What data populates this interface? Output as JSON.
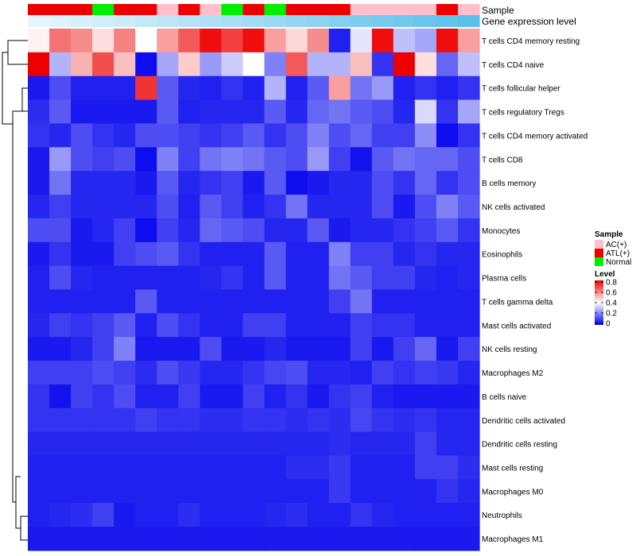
{
  "chart_data": {
    "type": "heatmap",
    "title": "",
    "annotation_titles": {
      "sample": "Sample",
      "level": "Gene expression level"
    },
    "rows": [
      "T cells CD4 memory resting",
      "T cells CD4 naive",
      "T cells follicular helper",
      "T cells regulatory  Tregs",
      "T cells CD4 memory activated",
      "T cells CD8",
      "B cells memory",
      "NK cells activated",
      "Monocytes",
      "Eosinophils",
      "Plasma cells",
      "T cells gamma delta",
      "Mast cells activated",
      "NK cells resting",
      "Macrophages M2",
      "B cells naive",
      "Dendritic cells activated",
      "Dendritic cells resting",
      "Mast cells resting",
      "Macrophages M0",
      "Neutrophils",
      "Macrophages M1"
    ],
    "sample_groups": [
      "ATL(+)",
      "ATL(+)",
      "ATL(+)",
      "Normal",
      "ATL(+)",
      "ATL(+)",
      "AC(+)",
      "ATL(+)",
      "AC(+)",
      "Normal",
      "ATL(+)",
      "Normal",
      "ATL(+)",
      "ATL(+)",
      "ATL(+)",
      "AC(+)",
      "AC(+)",
      "AC(+)",
      "AC(+)",
      "ATL(+)",
      "AC(+)"
    ],
    "gene_expression_level": [
      0.72,
      0.74,
      0.76,
      0.78,
      0.8,
      0.82,
      0.84,
      0.86,
      0.88,
      0.9,
      0.92,
      0.94,
      0.96,
      0.98,
      1.0,
      1.02,
      1.04,
      1.06,
      1.08,
      1.1,
      1.12
    ],
    "values": [
      [
        0.42,
        0.62,
        0.58,
        0.45,
        0.6,
        0.4,
        0.55,
        0.66,
        0.78,
        0.7,
        0.78,
        0.55,
        0.46,
        0.58,
        0.05,
        0.36,
        0.78,
        0.3,
        0.26,
        0.78,
        0.55
      ],
      [
        0.8,
        0.28,
        0.52,
        0.68,
        0.5,
        0.02,
        0.26,
        0.48,
        0.24,
        0.32,
        0.4,
        0.2,
        0.66,
        0.28,
        0.28,
        0.5,
        0.08,
        0.8,
        0.45,
        0.16,
        0.3
      ],
      [
        0.04,
        0.12,
        0.05,
        0.05,
        0.05,
        0.72,
        0.14,
        0.06,
        0.05,
        0.08,
        0.05,
        0.28,
        0.05,
        0.14,
        0.55,
        0.18,
        0.24,
        0.05,
        0.08,
        0.05,
        0.08
      ],
      [
        0.07,
        0.14,
        0.04,
        0.04,
        0.04,
        0.04,
        0.14,
        0.05,
        0.06,
        0.06,
        0.06,
        0.14,
        0.06,
        0.16,
        0.18,
        0.14,
        0.12,
        0.06,
        0.34,
        0.08,
        0.26
      ],
      [
        0.08,
        0.06,
        0.12,
        0.08,
        0.06,
        0.12,
        0.12,
        0.1,
        0.08,
        0.1,
        0.14,
        0.08,
        0.12,
        0.2,
        0.12,
        0.16,
        0.1,
        0.1,
        0.22,
        0.02,
        0.08
      ],
      [
        0.04,
        0.24,
        0.12,
        0.1,
        0.12,
        0.02,
        0.2,
        0.1,
        0.18,
        0.2,
        0.18,
        0.14,
        0.12,
        0.24,
        0.1,
        0.03,
        0.14,
        0.18,
        0.16,
        0.16,
        0.12
      ],
      [
        0.04,
        0.18,
        0.06,
        0.06,
        0.06,
        0.04,
        0.14,
        0.06,
        0.08,
        0.1,
        0.04,
        0.14,
        0.02,
        0.04,
        0.06,
        0.06,
        0.12,
        0.08,
        0.16,
        0.08,
        0.12
      ],
      [
        0.06,
        0.1,
        0.06,
        0.06,
        0.06,
        0.06,
        0.12,
        0.05,
        0.14,
        0.1,
        0.05,
        0.08,
        0.18,
        0.06,
        0.06,
        0.06,
        0.12,
        0.04,
        0.12,
        0.2,
        0.14
      ],
      [
        0.12,
        0.12,
        0.04,
        0.06,
        0.1,
        0.02,
        0.1,
        0.06,
        0.16,
        0.14,
        0.12,
        0.06,
        0.06,
        0.14,
        0.04,
        0.06,
        0.06,
        0.08,
        0.1,
        0.14,
        0.08
      ],
      [
        0.04,
        0.08,
        0.04,
        0.04,
        0.1,
        0.12,
        0.14,
        0.08,
        0.05,
        0.05,
        0.05,
        0.14,
        0.05,
        0.05,
        0.2,
        0.1,
        0.1,
        0.06,
        0.08,
        0.06,
        0.06
      ],
      [
        0.05,
        0.12,
        0.06,
        0.05,
        0.05,
        0.05,
        0.05,
        0.05,
        0.06,
        0.08,
        0.05,
        0.14,
        0.05,
        0.05,
        0.18,
        0.14,
        0.1,
        0.1,
        0.06,
        0.05,
        0.06
      ],
      [
        0.05,
        0.05,
        0.05,
        0.05,
        0.05,
        0.14,
        0.05,
        0.05,
        0.05,
        0.05,
        0.05,
        0.05,
        0.05,
        0.05,
        0.1,
        0.18,
        0.05,
        0.05,
        0.05,
        0.05,
        0.05
      ],
      [
        0.06,
        0.1,
        0.08,
        0.1,
        0.14,
        0.05,
        0.12,
        0.08,
        0.05,
        0.05,
        0.1,
        0.1,
        0.05,
        0.05,
        0.05,
        0.1,
        0.08,
        0.08,
        0.05,
        0.05,
        0.05
      ],
      [
        0.04,
        0.04,
        0.06,
        0.1,
        0.2,
        0.04,
        0.04,
        0.04,
        0.12,
        0.04,
        0.04,
        0.06,
        0.04,
        0.04,
        0.04,
        0.1,
        0.04,
        0.1,
        0.16,
        0.04,
        0.1
      ],
      [
        0.1,
        0.1,
        0.1,
        0.12,
        0.1,
        0.07,
        0.12,
        0.09,
        0.06,
        0.06,
        0.08,
        0.11,
        0.12,
        0.06,
        0.06,
        0.05,
        0.1,
        0.08,
        0.1,
        0.09,
        0.06
      ],
      [
        0.08,
        0.03,
        0.1,
        0.08,
        0.12,
        0.05,
        0.05,
        0.1,
        0.04,
        0.04,
        0.1,
        0.05,
        0.08,
        0.04,
        0.08,
        0.1,
        0.05,
        0.04,
        0.04,
        0.04,
        0.04
      ],
      [
        0.08,
        0.08,
        0.08,
        0.08,
        0.08,
        0.1,
        0.08,
        0.08,
        0.07,
        0.07,
        0.08,
        0.08,
        0.07,
        0.08,
        0.07,
        0.11,
        0.08,
        0.07,
        0.08,
        0.06,
        0.06
      ],
      [
        0.06,
        0.06,
        0.06,
        0.06,
        0.06,
        0.06,
        0.06,
        0.06,
        0.06,
        0.06,
        0.06,
        0.06,
        0.06,
        0.06,
        0.07,
        0.06,
        0.06,
        0.06,
        0.1,
        0.06,
        0.06
      ],
      [
        0.05,
        0.05,
        0.05,
        0.05,
        0.05,
        0.05,
        0.05,
        0.05,
        0.05,
        0.05,
        0.05,
        0.05,
        0.07,
        0.07,
        0.09,
        0.05,
        0.05,
        0.05,
        0.1,
        0.1,
        0.07
      ],
      [
        0.05,
        0.05,
        0.05,
        0.05,
        0.05,
        0.05,
        0.05,
        0.05,
        0.05,
        0.05,
        0.05,
        0.05,
        0.05,
        0.05,
        0.09,
        0.05,
        0.05,
        0.05,
        0.05,
        0.08,
        0.06
      ],
      [
        0.05,
        0.06,
        0.07,
        0.1,
        0.04,
        0.05,
        0.05,
        0.07,
        0.05,
        0.05,
        0.05,
        0.06,
        0.07,
        0.05,
        0.05,
        0.08,
        0.06,
        0.05,
        0.05,
        0.05,
        0.05
      ],
      [
        0.04,
        0.04,
        0.04,
        0.04,
        0.04,
        0.04,
        0.04,
        0.04,
        0.04,
        0.04,
        0.04,
        0.04,
        0.04,
        0.04,
        0.04,
        0.04,
        0.04,
        0.04,
        0.04,
        0.04,
        0.04
      ]
    ],
    "legend_sample": {
      "title": "Sample",
      "entries": [
        {
          "label": "AC(+)",
          "color": "#ffc0cb"
        },
        {
          "label": "ATL(+)",
          "color": "#ee0000"
        },
        {
          "label": "Normal",
          "color": "#00ee00"
        }
      ]
    },
    "legend_level": {
      "title": "Level",
      "ticks": [
        "0.8",
        "0.6",
        "0.4",
        "0.2",
        "0"
      ],
      "tick_values": [
        0.8,
        0.6,
        0.4,
        0.2,
        0.0
      ],
      "range": [
        0,
        0.8
      ]
    },
    "colorscale": [
      "#0000ee",
      "#ffffff",
      "#ee0000"
    ],
    "level_colorscale": [
      "#ffffff",
      "#5bc0eb"
    ]
  }
}
